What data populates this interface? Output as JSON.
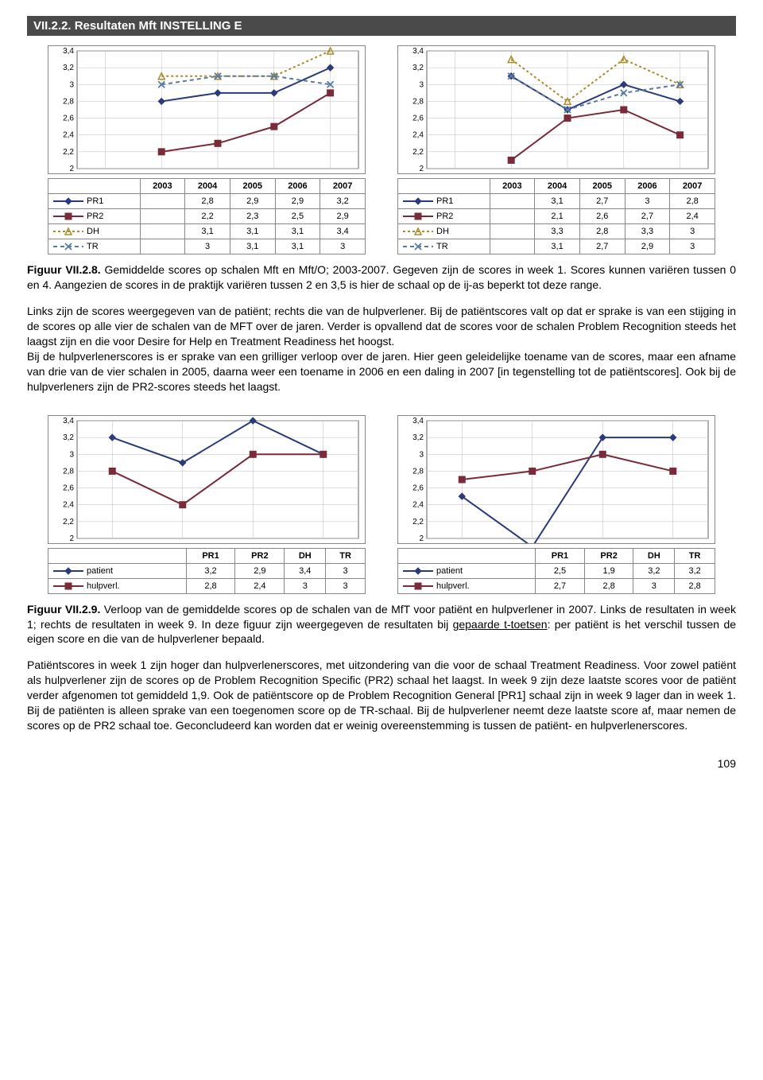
{
  "section_title": "VII.2.2. Resultaten Mft INSTELLING E",
  "years": [
    "2003",
    "2004",
    "2005",
    "2006",
    "2007"
  ],
  "scales": [
    "PR1",
    "PR2",
    "DH",
    "TR"
  ],
  "chartA": {
    "ylim": [
      2,
      3.4
    ],
    "yticks": [
      "2",
      "2,2",
      "2,4",
      "2,6",
      "2,8",
      "3",
      "3,2",
      "3,4"
    ],
    "series": {
      "PR1": [
        null,
        2.8,
        2.9,
        2.9,
        3.2
      ],
      "PR2": [
        null,
        2.2,
        2.3,
        2.5,
        2.9
      ],
      "DH": [
        null,
        3.1,
        3.1,
        3.1,
        3.4
      ],
      "TR": [
        null,
        3,
        3.1,
        3.1,
        3
      ]
    },
    "table": {
      "PR1": [
        "",
        "2,8",
        "2,9",
        "2,9",
        "3,2"
      ],
      "PR2": [
        "",
        "2,2",
        "2,3",
        "2,5",
        "2,9"
      ],
      "DH": [
        "",
        "3,1",
        "3,1",
        "3,1",
        "3,4"
      ],
      "TR": [
        "",
        "3",
        "3,1",
        "3,1",
        "3"
      ]
    }
  },
  "chartB": {
    "ylim": [
      2,
      3.4
    ],
    "yticks": [
      "2",
      "2,2",
      "2,4",
      "2,6",
      "2,8",
      "3",
      "3,2",
      "3,4"
    ],
    "series": {
      "PR1": [
        null,
        3.1,
        2.7,
        3,
        2.8
      ],
      "PR2": [
        null,
        2.1,
        2.6,
        2.7,
        2.4
      ],
      "DH": [
        null,
        3.3,
        2.8,
        3.3,
        3
      ],
      "TR": [
        null,
        3.1,
        2.7,
        2.9,
        3
      ]
    },
    "table": {
      "PR1": [
        "",
        "3,1",
        "2,7",
        "3",
        "2,8"
      ],
      "PR2": [
        "",
        "2,1",
        "2,6",
        "2,7",
        "2,4"
      ],
      "DH": [
        "",
        "3,3",
        "2,8",
        "3,3",
        "3"
      ],
      "TR": [
        "",
        "3,1",
        "2,7",
        "2,9",
        "3"
      ]
    }
  },
  "caption1_lead": "Figuur VII.2.8.",
  "caption1_text": " Gemiddelde scores op schalen Mft en Mft/O; 2003-2007. Gegeven zijn de scores in week 1. Scores kunnen variëren tussen 0 en 4. Aangezien de scores in de praktijk variëren tussen 2 en 3,5 is hier de schaal op de ij-as beperkt tot deze range.",
  "body1": "Links zijn de scores weergegeven van de patiënt; rechts die van de hulpverlener. Bij de patiëntscores valt op dat er sprake is van een stijging in de scores op alle vier de schalen van de MFT over de jaren. Verder is opvallend dat de scores voor de schalen Problem Recognition steeds het laagst zijn en die voor Desire for Help en Treatment Readiness het hoogst.\nBij de hulpverlenerscores is er sprake van een grilliger verloop over de jaren. Hier geen geleidelijke toename van de scores, maar een afname van drie van de vier schalen in 2005, daarna weer een toename in 2006 en een daling in 2007 [in tegenstelling tot de patiëntscores]. Ook bij de hulpverleners zijn de PR2-scores steeds het laagst.",
  "scales2": [
    "PR1",
    "PR2",
    "DH",
    "TR"
  ],
  "chartC": {
    "ylim": [
      2,
      3.4
    ],
    "yticks": [
      "2",
      "2,2",
      "2,4",
      "2,6",
      "2,8",
      "3",
      "3,2",
      "3,4"
    ],
    "series": {
      "patient": [
        3.2,
        2.9,
        3.4,
        3
      ],
      "hulpverl": [
        2.8,
        2.4,
        3,
        3
      ]
    },
    "table": {
      "patient": [
        "3,2",
        "2,9",
        "3,4",
        "3"
      ],
      "hulpverl": [
        "2,8",
        "2,4",
        "3",
        "3"
      ]
    }
  },
  "chartD": {
    "ylim": [
      2,
      3.4
    ],
    "yticks": [
      "2",
      "2,2",
      "2,4",
      "2,6",
      "2,8",
      "3",
      "3,2",
      "3,4"
    ],
    "series": {
      "patient": [
        2.5,
        1.9,
        3.2,
        3.2
      ],
      "hulpverl": [
        2.7,
        2.8,
        3,
        2.8
      ]
    },
    "table": {
      "patient": [
        "2,5",
        "1,9",
        "3,2",
        "3,2"
      ],
      "hulpverl": [
        "2,7",
        "2,8",
        "3",
        "2,8"
      ]
    }
  },
  "legend2": {
    "patient": "patient",
    "hulpverl": "hulpverl."
  },
  "caption2_lead": "Figuur VII.2.9.",
  "caption2_text": " Verloop van de gemiddelde scores op de schalen van de MfT voor patiënt en hulpverlener in 2007. Links de resultaten in week 1; rechts de resultaten in week 9. In deze figuur zijn weergegeven de resultaten bij ",
  "caption2_underline": "gepaarde t-toetsen",
  "caption2_text2": ": per patiënt is het verschil tussen de eigen score en die van de hulpverlener bepaald.",
  "body2": "Patiëntscores in week 1 zijn hoger dan hulpverlenerscores, met uitzondering van die voor de schaal Treatment Readiness. Voor zowel patiënt als hulpverlener zijn de scores op de Problem Recognition Specific (PR2) schaal het laagst. In week 9 zijn deze laatste scores voor de patiënt verder afgenomen tot gemiddeld 1,9. Ook de patiëntscore op de Problem Recognition General [PR1] schaal zijn in week 9 lager dan in week 1. Bij de patiënten is alleen sprake van een toegenomen score op de TR-schaal. Bij de hulpverlener neemt deze laatste score af, maar nemen de scores op de PR2 schaal toe. Geconcludeerd kan worden dat er weinig overeenstemming is tussen de patiënt- en hulpverlenerscores.",
  "pagenum": "109",
  "colors": {
    "PR1": "#2b3a7a",
    "PR2": "#7a2b3a",
    "DH": "#a88e2b",
    "TR": "#5a7aa0",
    "patient": "#2b3a7a",
    "hulpverl": "#7a2b3a",
    "grid": "#bdbdbd",
    "axis": "#666",
    "plotbg": "#ffffff"
  },
  "markers": {
    "PR1": "diamond",
    "PR2": "square",
    "DH": "triangle",
    "TR": "x",
    "patient": "diamond",
    "hulpverl": "square"
  },
  "dash": {
    "PR1": "",
    "PR2": "",
    "DH": "3 3",
    "TR": "5 4",
    "patient": "",
    "hulpverl": ""
  }
}
